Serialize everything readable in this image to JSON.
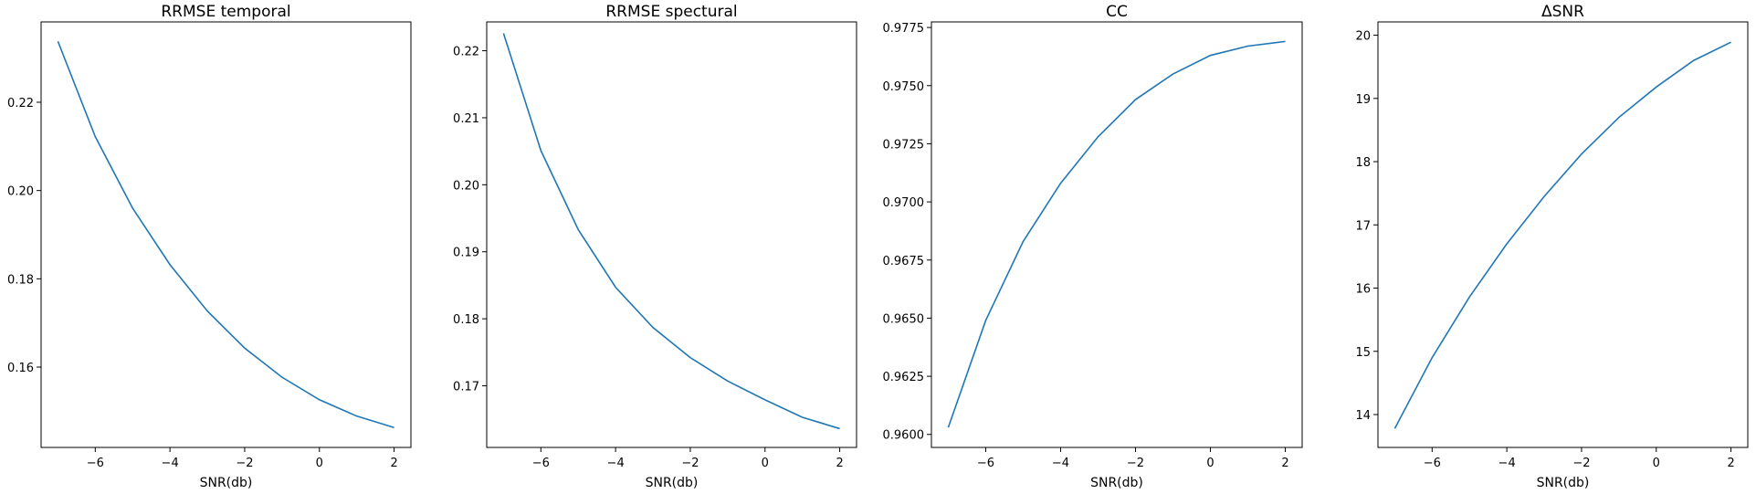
{
  "chart_data": [
    {
      "type": "line",
      "title": "RRMSE temporal",
      "xlabel": "SNR(db)",
      "ylabel": "",
      "xlim": [
        -7.45,
        2.45
      ],
      "ylim": [
        0.1418,
        0.2382
      ],
      "xticks": [
        -6,
        -4,
        -2,
        0,
        2
      ],
      "xtick_labels": [
        "−6",
        "−4",
        "−2",
        "0",
        "2"
      ],
      "yticks": [
        0.16,
        0.18,
        0.2,
        0.22
      ],
      "ytick_labels": [
        "0.16",
        "0.18",
        "0.20",
        "0.22"
      ],
      "x": [
        -7,
        -6,
        -5,
        -4,
        -3,
        -2,
        -1,
        0,
        1,
        2
      ],
      "series": [
        {
          "values": [
            0.2338,
            0.2122,
            0.196,
            0.1832,
            0.1727,
            0.1643,
            0.1577,
            0.1526,
            0.1489,
            0.1463
          ]
        }
      ],
      "grid": false,
      "legend": "none"
    },
    {
      "type": "line",
      "title": "RRMSE spectural",
      "xlabel": "SNR(db)",
      "ylabel": "",
      "xlim": [
        -7.45,
        2.45
      ],
      "ylim": [
        0.1608,
        0.2243
      ],
      "xticks": [
        -6,
        -4,
        -2,
        0,
        2
      ],
      "xtick_labels": [
        "−6",
        "−4",
        "−2",
        "0",
        "2"
      ],
      "yticks": [
        0.17,
        0.18,
        0.19,
        0.2,
        0.21,
        0.22
      ],
      "ytick_labels": [
        "0.17",
        "0.18",
        "0.19",
        "0.20",
        "0.21",
        "0.22"
      ],
      "x": [
        -7,
        -6,
        -5,
        -4,
        -3,
        -2,
        -1,
        0,
        1,
        2
      ],
      "series": [
        {
          "values": [
            0.2226,
            0.2051,
            0.1933,
            0.1847,
            0.1787,
            0.1742,
            0.1707,
            0.1679,
            0.1653,
            0.1636
          ]
        }
      ],
      "grid": false,
      "legend": "none"
    },
    {
      "type": "line",
      "title": "CC",
      "xlabel": "SNR(db)",
      "ylabel": "",
      "xlim": [
        -7.45,
        2.45
      ],
      "ylim": [
        0.95944,
        0.97774
      ],
      "xticks": [
        -6,
        -4,
        -2,
        0,
        2
      ],
      "xtick_labels": [
        "−6",
        "−4",
        "−2",
        "0",
        "2"
      ],
      "yticks": [
        0.96,
        0.9625,
        0.965,
        0.9675,
        0.97,
        0.9725,
        0.975,
        0.9775
      ],
      "ytick_labels": [
        "0.9600",
        "0.9625",
        "0.9650",
        "0.9675",
        "0.9700",
        "0.9725",
        "0.9750",
        "0.9775"
      ],
      "x": [
        -7,
        -6,
        -5,
        -4,
        -3,
        -2,
        -1,
        0,
        1,
        2
      ],
      "series": [
        {
          "values": [
            0.9603,
            0.9649,
            0.9683,
            0.9708,
            0.9728,
            0.9744,
            0.9755,
            0.9763,
            0.9767,
            0.9769
          ]
        }
      ],
      "grid": false,
      "legend": "none"
    },
    {
      "type": "line",
      "title": "ΔSNR",
      "xlabel": "SNR(db)",
      "ylabel": "",
      "xlim": [
        -7.45,
        2.45
      ],
      "ylim": [
        13.48,
        20.21
      ],
      "xticks": [
        -6,
        -4,
        -2,
        0,
        2
      ],
      "xtick_labels": [
        "−6",
        "−4",
        "−2",
        "0",
        "2"
      ],
      "yticks": [
        14,
        15,
        16,
        17,
        18,
        19,
        20
      ],
      "ytick_labels": [
        "14",
        "15",
        "16",
        "17",
        "18",
        "19",
        "20"
      ],
      "x": [
        -7,
        -6,
        -5,
        -4,
        -3,
        -2,
        -1,
        0,
        1,
        2
      ],
      "series": [
        {
          "values": [
            13.78,
            14.9,
            15.86,
            16.7,
            17.45,
            18.12,
            18.7,
            19.18,
            19.6,
            19.89
          ]
        }
      ],
      "grid": false,
      "legend": "none"
    }
  ],
  "colors": {
    "line": "#1f77b4",
    "axes": "#000000",
    "background": "#ffffff"
  }
}
